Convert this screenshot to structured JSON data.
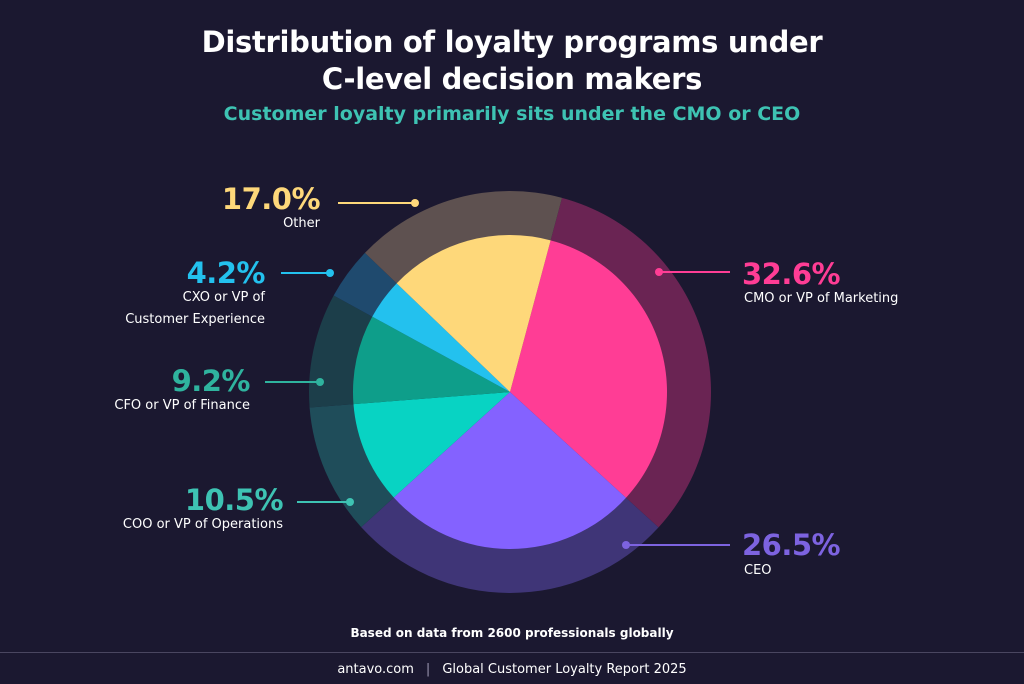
{
  "header": {
    "title_line1": "Distribution of loyalty programs under",
    "title_line2": "C-level decision makers",
    "subtitle": "Customer loyalty primarily sits under the CMO or CEO"
  },
  "chart_data": {
    "type": "pie",
    "categories": [
      "CMO or VP of Marketing",
      "CEO",
      "COO or VP of Operations",
      "CFO or VP of Finance",
      "CXO or VP of Customer Experience",
      "Other"
    ],
    "values": [
      32.6,
      26.5,
      10.5,
      9.2,
      4.2,
      17.0
    ],
    "value_labels": [
      "32.6%",
      "26.5%",
      "10.5%",
      "9.2%",
      "4.2%",
      "17.0%"
    ],
    "colors": [
      "#ff3d95",
      "#8462ff",
      "#08d3c3",
      "#0e9e8a",
      "#23c1ee",
      "#fed87a"
    ],
    "ring_colors": [
      "#6a2453",
      "#3f3577",
      "#1f4d5a",
      "#1c3e4a",
      "#1f4a6e",
      "#5e5150"
    ]
  },
  "labels": {
    "cmo": {
      "pct": "32.6%",
      "name": "CMO or VP of Marketing"
    },
    "ceo": {
      "pct": "26.5%",
      "name": "CEO"
    },
    "coo": {
      "pct": "10.5%",
      "name": "COO or VP of Operations"
    },
    "cfo": {
      "pct": "9.2%",
      "name": "CFO or VP of Finance"
    },
    "cxo": {
      "pct": "4.2%",
      "name_line1": "CXO or VP of",
      "name_line2": "Customer Experience"
    },
    "other": {
      "pct": "17.0%",
      "name": "Other"
    }
  },
  "footnote": "Based on data from 2600 professionals globally",
  "footer": {
    "site": "antavo.com",
    "separator": "|",
    "report": "Global Customer Loyalty Report 2025"
  }
}
